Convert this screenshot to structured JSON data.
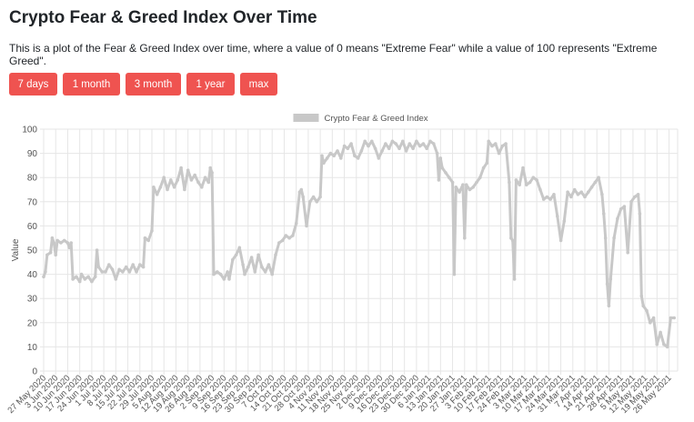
{
  "page": {
    "title": "Crypto Fear & Greed Index Over Time",
    "description": "This is a plot of the Fear & Greed Index over time, where a value of 0 means \"Extreme Fear\" while a value of 100 represents \"Extreme Greed\"."
  },
  "buttons": {
    "b7d": "7 days",
    "b1m": "1 month",
    "b3m": "3 month",
    "b1y": "1 year",
    "bmax": "max"
  },
  "colors": {
    "button": "#ef5350",
    "line": "#c8c8c8",
    "grid": "#e6e6e6",
    "text": "#555555"
  },
  "chart_data": {
    "type": "line",
    "title": "",
    "ylabel": "Value",
    "xlabel": "",
    "ylim": [
      0,
      100
    ],
    "y_ticks": [
      0,
      10,
      20,
      30,
      40,
      50,
      60,
      70,
      80,
      90,
      100
    ],
    "grid": true,
    "legend_position": "top-center",
    "x_start": "2020-05-27",
    "x_end": "2021-05-31",
    "x_tick_labels": [
      "27 May 2020",
      "3 Jun 2020",
      "10 Jun 2020",
      "17 Jun 2020",
      "24 Jun 2020",
      "1 Jul 2020",
      "8 Jul 2020",
      "15 Jul 2020",
      "22 Jul 2020",
      "29 Jul 2020",
      "5 Aug 2020",
      "12 Aug 2020",
      "19 Aug 2020",
      "26 Aug 2020",
      "2 Sep 2020",
      "9 Sep 2020",
      "16 Sep 2020",
      "23 Sep 2020",
      "30 Sep 2020",
      "7 Oct 2020",
      "14 Oct 2020",
      "21 Oct 2020",
      "28 Oct 2020",
      "4 Nov 2020",
      "11 Nov 2020",
      "18 Nov 2020",
      "25 Nov 2020",
      "2 Dec 2020",
      "9 Dec 2020",
      "16 Dec 2020",
      "23 Dec 2020",
      "30 Dec 2020",
      "6 Jan 2021",
      "13 Jan 2021",
      "20 Jan 2021",
      "27 Jan 2021",
      "3 Feb 2021",
      "10 Feb 2021",
      "17 Feb 2021",
      "24 Feb 2021",
      "3 Mar 2021",
      "10 Mar 2021",
      "17 Mar 2021",
      "24 Mar 2021",
      "31 Mar 2021",
      "7 Apr 2021",
      "14 Apr 2021",
      "21 Apr 2021",
      "28 Apr 2021",
      "5 May 2021",
      "12 May 2021",
      "19 May 2021",
      "26 May 2021"
    ],
    "series": [
      {
        "name": "Crypto Fear & Greed Index",
        "color": "#c8c8c8",
        "points": [
          [
            "2020-05-27",
            39
          ],
          [
            "2020-05-28",
            41
          ],
          [
            "2020-05-29",
            48
          ],
          [
            "2020-05-31",
            49
          ],
          [
            "2020-06-01",
            55
          ],
          [
            "2020-06-02",
            53
          ],
          [
            "2020-06-03",
            48
          ],
          [
            "2020-06-04",
            54
          ],
          [
            "2020-06-06",
            53
          ],
          [
            "2020-06-08",
            54
          ],
          [
            "2020-06-10",
            53
          ],
          [
            "2020-06-11",
            51
          ],
          [
            "2020-06-12",
            53
          ],
          [
            "2020-06-13",
            38
          ],
          [
            "2020-06-15",
            39
          ],
          [
            "2020-06-17",
            37
          ],
          [
            "2020-06-18",
            40
          ],
          [
            "2020-06-20",
            38
          ],
          [
            "2020-06-22",
            39
          ],
          [
            "2020-06-24",
            37
          ],
          [
            "2020-06-26",
            39
          ],
          [
            "2020-06-27",
            50
          ],
          [
            "2020-06-28",
            43
          ],
          [
            "2020-06-30",
            41
          ],
          [
            "2020-07-02",
            41
          ],
          [
            "2020-07-04",
            44
          ],
          [
            "2020-07-06",
            42
          ],
          [
            "2020-07-08",
            38
          ],
          [
            "2020-07-10",
            42
          ],
          [
            "2020-07-12",
            41
          ],
          [
            "2020-07-14",
            43
          ],
          [
            "2020-07-16",
            41
          ],
          [
            "2020-07-18",
            44
          ],
          [
            "2020-07-20",
            41
          ],
          [
            "2020-07-22",
            44
          ],
          [
            "2020-07-24",
            43
          ],
          [
            "2020-07-25",
            55
          ],
          [
            "2020-07-27",
            54
          ],
          [
            "2020-07-29",
            58
          ],
          [
            "2020-07-30",
            76
          ],
          [
            "2020-08-01",
            73
          ],
          [
            "2020-08-03",
            76
          ],
          [
            "2020-08-05",
            80
          ],
          [
            "2020-08-07",
            75
          ],
          [
            "2020-08-09",
            79
          ],
          [
            "2020-08-11",
            76
          ],
          [
            "2020-08-13",
            79
          ],
          [
            "2020-08-15",
            84
          ],
          [
            "2020-08-17",
            75
          ],
          [
            "2020-08-19",
            83
          ],
          [
            "2020-08-21",
            79
          ],
          [
            "2020-08-23",
            81
          ],
          [
            "2020-08-25",
            78
          ],
          [
            "2020-08-27",
            76
          ],
          [
            "2020-08-29",
            80
          ],
          [
            "2020-08-31",
            78
          ],
          [
            "2020-09-01",
            84
          ],
          [
            "2020-09-02",
            82
          ],
          [
            "2020-09-03",
            40
          ],
          [
            "2020-09-05",
            41
          ],
          [
            "2020-09-07",
            40
          ],
          [
            "2020-09-09",
            38
          ],
          [
            "2020-09-11",
            41
          ],
          [
            "2020-09-12",
            38
          ],
          [
            "2020-09-14",
            46
          ],
          [
            "2020-09-16",
            48
          ],
          [
            "2020-09-18",
            51
          ],
          [
            "2020-09-20",
            44
          ],
          [
            "2020-09-21",
            40
          ],
          [
            "2020-09-23",
            43
          ],
          [
            "2020-09-25",
            47
          ],
          [
            "2020-09-27",
            41
          ],
          [
            "2020-09-29",
            48
          ],
          [
            "2020-10-01",
            43
          ],
          [
            "2020-10-03",
            41
          ],
          [
            "2020-10-05",
            44
          ],
          [
            "2020-10-07",
            40
          ],
          [
            "2020-10-09",
            48
          ],
          [
            "2020-10-11",
            53
          ],
          [
            "2020-10-13",
            54
          ],
          [
            "2020-10-15",
            56
          ],
          [
            "2020-10-17",
            55
          ],
          [
            "2020-10-19",
            56
          ],
          [
            "2020-10-21",
            61
          ],
          [
            "2020-10-23",
            74
          ],
          [
            "2020-10-24",
            75
          ],
          [
            "2020-10-25",
            72
          ],
          [
            "2020-10-27",
            60
          ],
          [
            "2020-10-29",
            70
          ],
          [
            "2020-10-31",
            72
          ],
          [
            "2020-11-02",
            70
          ],
          [
            "2020-11-04",
            72
          ],
          [
            "2020-11-05",
            89
          ],
          [
            "2020-11-06",
            86
          ],
          [
            "2020-11-08",
            88
          ],
          [
            "2020-11-10",
            90
          ],
          [
            "2020-11-12",
            89
          ],
          [
            "2020-11-14",
            91
          ],
          [
            "2020-11-16",
            88
          ],
          [
            "2020-11-18",
            93
          ],
          [
            "2020-11-20",
            92
          ],
          [
            "2020-11-22",
            94
          ],
          [
            "2020-11-24",
            89
          ],
          [
            "2020-11-26",
            88
          ],
          [
            "2020-11-28",
            91
          ],
          [
            "2020-11-30",
            95
          ],
          [
            "2020-12-02",
            93
          ],
          [
            "2020-12-04",
            95
          ],
          [
            "2020-12-06",
            92
          ],
          [
            "2020-12-08",
            88
          ],
          [
            "2020-12-10",
            91
          ],
          [
            "2020-12-12",
            94
          ],
          [
            "2020-12-14",
            92
          ],
          [
            "2020-12-16",
            95
          ],
          [
            "2020-12-18",
            94
          ],
          [
            "2020-12-20",
            92
          ],
          [
            "2020-12-22",
            95
          ],
          [
            "2020-12-24",
            91
          ],
          [
            "2020-12-26",
            94
          ],
          [
            "2020-12-28",
            92
          ],
          [
            "2020-12-30",
            95
          ],
          [
            "2021-01-01",
            93
          ],
          [
            "2021-01-03",
            94
          ],
          [
            "2021-01-05",
            92
          ],
          [
            "2021-01-07",
            95
          ],
          [
            "2021-01-09",
            94
          ],
          [
            "2021-01-11",
            90
          ],
          [
            "2021-01-12",
            79
          ],
          [
            "2021-01-13",
            88
          ],
          [
            "2021-01-14",
            84
          ],
          [
            "2021-01-16",
            82
          ],
          [
            "2021-01-18",
            80
          ],
          [
            "2021-01-20",
            78
          ],
          [
            "2021-01-21",
            40
          ],
          [
            "2021-01-22",
            76
          ],
          [
            "2021-01-24",
            74
          ],
          [
            "2021-01-26",
            77
          ],
          [
            "2021-01-27",
            55
          ],
          [
            "2021-01-28",
            77
          ],
          [
            "2021-01-30",
            75
          ],
          [
            "2021-02-01",
            76
          ],
          [
            "2021-02-03",
            78
          ],
          [
            "2021-02-05",
            80
          ],
          [
            "2021-02-07",
            84
          ],
          [
            "2021-02-09",
            86
          ],
          [
            "2021-02-10",
            95
          ],
          [
            "2021-02-12",
            93
          ],
          [
            "2021-02-14",
            94
          ],
          [
            "2021-02-16",
            90
          ],
          [
            "2021-02-18",
            93
          ],
          [
            "2021-02-20",
            94
          ],
          [
            "2021-02-22",
            78
          ],
          [
            "2021-02-23",
            55
          ],
          [
            "2021-02-24",
            54
          ],
          [
            "2021-02-25",
            38
          ],
          [
            "2021-02-26",
            79
          ],
          [
            "2021-02-28",
            77
          ],
          [
            "2021-03-02",
            84
          ],
          [
            "2021-03-04",
            77
          ],
          [
            "2021-03-06",
            78
          ],
          [
            "2021-03-08",
            80
          ],
          [
            "2021-03-10",
            79
          ],
          [
            "2021-03-12",
            75
          ],
          [
            "2021-03-14",
            71
          ],
          [
            "2021-03-16",
            72
          ],
          [
            "2021-03-18",
            71
          ],
          [
            "2021-03-20",
            73
          ],
          [
            "2021-03-22",
            64
          ],
          [
            "2021-03-24",
            54
          ],
          [
            "2021-03-26",
            62
          ],
          [
            "2021-03-28",
            74
          ],
          [
            "2021-03-30",
            72
          ],
          [
            "2021-04-01",
            75
          ],
          [
            "2021-04-03",
            73
          ],
          [
            "2021-04-05",
            74
          ],
          [
            "2021-04-07",
            72
          ],
          [
            "2021-04-09",
            74
          ],
          [
            "2021-04-11",
            76
          ],
          [
            "2021-04-13",
            78
          ],
          [
            "2021-04-15",
            80
          ],
          [
            "2021-04-17",
            73
          ],
          [
            "2021-04-18",
            65
          ],
          [
            "2021-04-19",
            55
          ],
          [
            "2021-04-20",
            36
          ],
          [
            "2021-04-21",
            27
          ],
          [
            "2021-04-22",
            38
          ],
          [
            "2021-04-24",
            55
          ],
          [
            "2021-04-26",
            63
          ],
          [
            "2021-04-28",
            67
          ],
          [
            "2021-04-30",
            68
          ],
          [
            "2021-05-02",
            49
          ],
          [
            "2021-05-04",
            70
          ],
          [
            "2021-05-06",
            72
          ],
          [
            "2021-05-08",
            73
          ],
          [
            "2021-05-09",
            65
          ],
          [
            "2021-05-10",
            31
          ],
          [
            "2021-05-11",
            27
          ],
          [
            "2021-05-13",
            25
          ],
          [
            "2021-05-15",
            20
          ],
          [
            "2021-05-17",
            22
          ],
          [
            "2021-05-19",
            11
          ],
          [
            "2021-05-21",
            16
          ],
          [
            "2021-05-23",
            11
          ],
          [
            "2021-05-25",
            10
          ],
          [
            "2021-05-27",
            22
          ],
          [
            "2021-05-29",
            22
          ]
        ]
      }
    ]
  }
}
